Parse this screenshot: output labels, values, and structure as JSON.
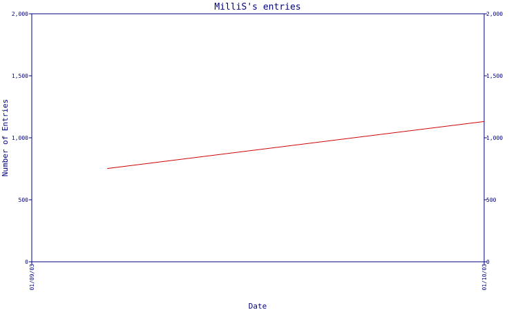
{
  "chart_data": {
    "type": "line",
    "title": "MilliS's entries",
    "xlabel": "Date",
    "ylabel": "Number of Entries",
    "x_ticks": [
      "01/09/03",
      "01/10/03"
    ],
    "x_range": [
      "01/09/03",
      "01/10/03"
    ],
    "ylim": [
      0,
      2000
    ],
    "y_ticks": [
      0,
      500,
      1000,
      1500,
      2000
    ],
    "y_tick_labels": [
      "0",
      "500",
      "1,000",
      "1,500",
      "2,000"
    ],
    "right_axis": true,
    "grid": false,
    "series": [
      {
        "color": "#cc0000",
        "x": [
          "01/09/03 04:00",
          "01/10/03 00:00"
        ],
        "y": [
          752,
          1131
        ]
      }
    ]
  }
}
